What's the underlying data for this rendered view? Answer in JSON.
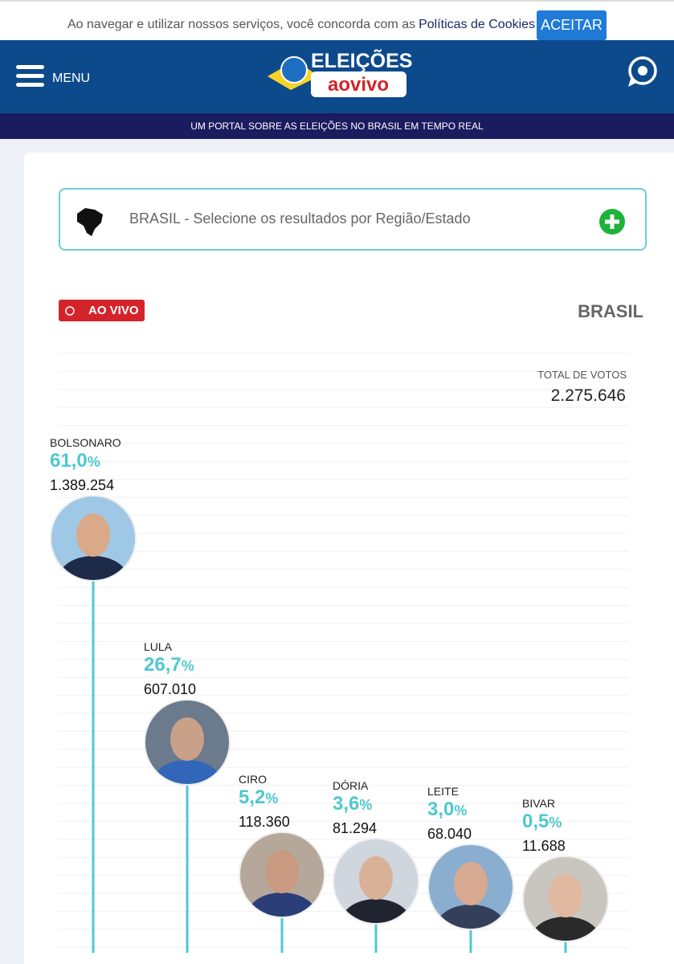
{
  "cookie_bar": {
    "text": "Ao navegar e utilizar nossos serviços, você concorda com as",
    "link": "Políticas de Cookies",
    "button": "ACEITAR"
  },
  "header": {
    "menu": "MENU",
    "logo_top": "ELEIÇÕES",
    "logo_bottom": "aovivo",
    "tagline": "UM PORTAL SOBRE AS ELEIÇÕES NO BRASIL EM TEMPO REAL"
  },
  "selector": {
    "text": "BRASIL - Selecione os resultados por Região/Estado"
  },
  "results": {
    "badge": "AO VIVO",
    "region": "BRASIL",
    "total_label": "TOTAL DE VOTOS",
    "total": "2.275.646",
    "candidates": [
      {
        "name": "BOLSONARO",
        "percent": "61,0",
        "percent_sign": "%",
        "votes": "1.389.254"
      },
      {
        "name": "LULA",
        "percent": "26,7",
        "percent_sign": "%",
        "votes": "607.010"
      },
      {
        "name": "CIRO",
        "percent": "5,2",
        "percent_sign": "%",
        "votes": "118.360"
      },
      {
        "name": "DÓRIA",
        "percent": "3,6",
        "percent_sign": "%",
        "votes": "81.294"
      },
      {
        "name": "LEITE",
        "percent": "3,0",
        "percent_sign": "%",
        "votes": "68.040"
      },
      {
        "name": "BIVAR",
        "percent": "0,5",
        "percent_sign": "%",
        "votes": "11.688"
      }
    ]
  }
}
